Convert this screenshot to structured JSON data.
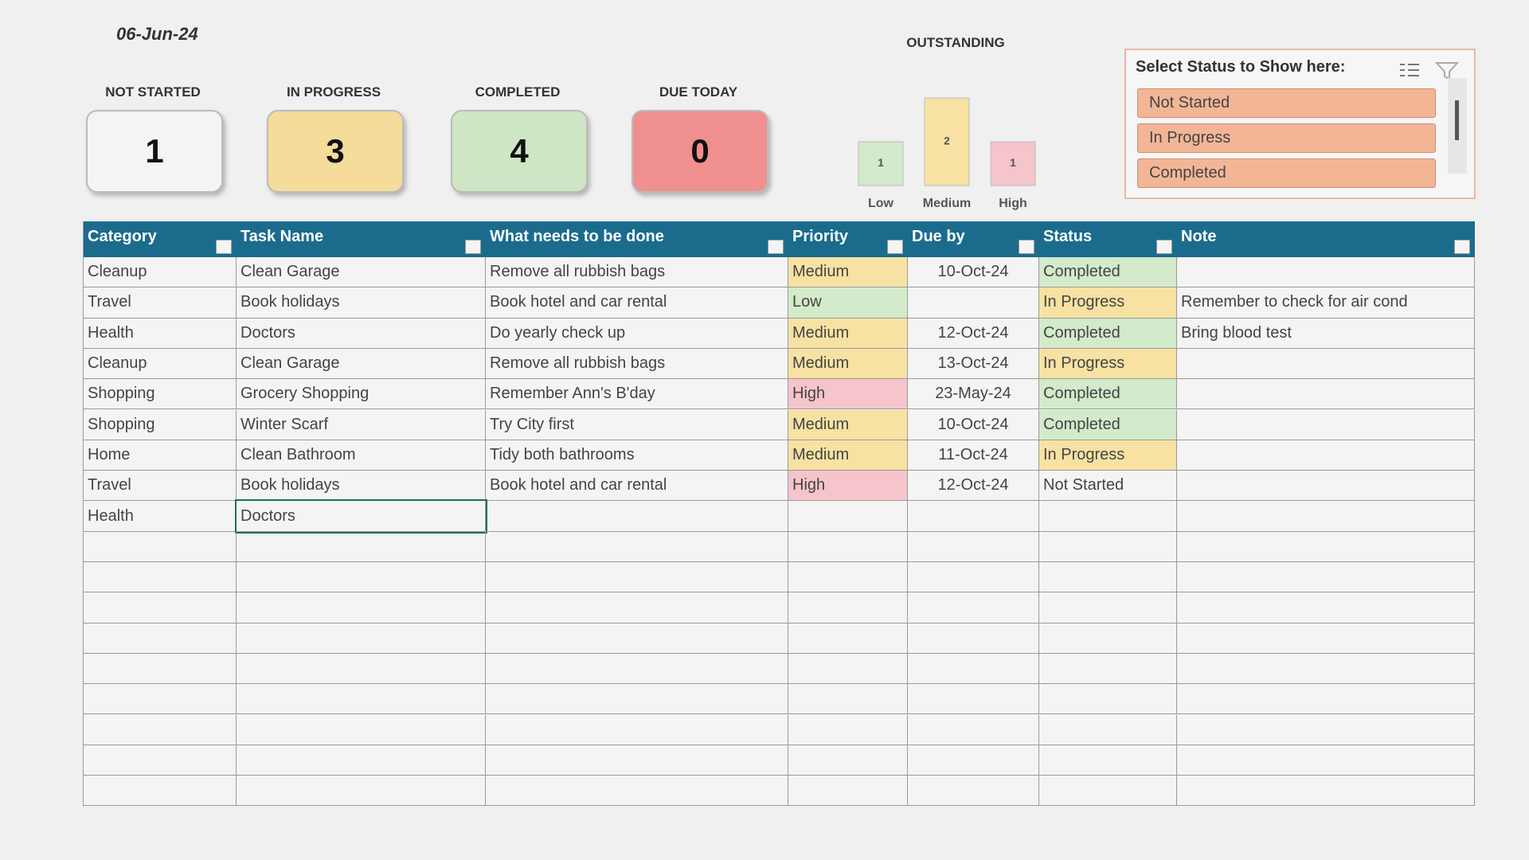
{
  "header": {
    "date": "06-Jun-24"
  },
  "kpis": [
    {
      "label": "NOT STARTED",
      "value": 1,
      "color": "#f4f4f4"
    },
    {
      "label": "IN PROGRESS",
      "value": 3,
      "color": "#f5dc9a"
    },
    {
      "label": "COMPLETED",
      "value": 4,
      "color": "#cfe6c4"
    },
    {
      "label": "DUE TODAY",
      "value": 0,
      "color": "#ef8f8f"
    }
  ],
  "chart_data": {
    "type": "bar",
    "title": "OUTSTANDING",
    "categories": [
      "Low",
      "Medium",
      "High"
    ],
    "values": [
      1,
      2,
      1
    ],
    "colors": [
      "#d3eacb",
      "#f7e2a3",
      "#f6c4cb"
    ]
  },
  "slicer": {
    "title": "Select Status to Show here:",
    "items": [
      "Not Started",
      "In Progress",
      "Completed"
    ],
    "color": "#f2b697"
  },
  "table": {
    "header_color": "#1b6c8c",
    "columns": [
      "Category",
      "Task Name",
      "What needs to be done",
      "Priority",
      "Due by",
      "Status",
      "Note"
    ],
    "rows": [
      [
        "Cleanup",
        "Clean Garage",
        "Remove all rubbish bags",
        "Medium",
        "10-Oct-24",
        "Completed",
        null
      ],
      [
        "Travel",
        "Book holidays",
        "Book hotel and car rental",
        "Low",
        null,
        "In Progress",
        "Remember to check for air cond"
      ],
      [
        "Health",
        "Doctors",
        "Do yearly check up",
        "Medium",
        "12-Oct-24",
        "Completed",
        "Bring blood test"
      ],
      [
        "Cleanup",
        "Clean Garage",
        "Remove all rubbish bags",
        "Medium",
        "13-Oct-24",
        "In Progress",
        null
      ],
      [
        "Shopping",
        "Grocery Shopping",
        "Remember Ann's B'day",
        "High",
        "23-May-24",
        "Completed",
        null
      ],
      [
        "Shopping",
        "Winter Scarf",
        "Try City first",
        "Medium",
        "10-Oct-24",
        "Completed",
        null
      ],
      [
        "Home",
        "Clean Bathroom",
        "Tidy both bathrooms",
        "Medium",
        "11-Oct-24",
        "In Progress",
        null
      ],
      [
        "Travel",
        "Book holidays",
        "Book hotel and car rental",
        "High",
        "12-Oct-24",
        "Not Started",
        null
      ],
      [
        "Health",
        "Doctors",
        null,
        null,
        null,
        null,
        null
      ]
    ],
    "priority_fills": [
      "#f7e2a3",
      "#d3eacb",
      "#f7e2a3",
      "#f7e2a3",
      "#f6c4cb",
      "#f7e2a3",
      "#f7e2a3",
      "#f6c4cb",
      null
    ],
    "status_fills": [
      "#d3eacb",
      "#f7e2a3",
      "#d3eacb",
      "#f7e2a3",
      "#d3eacb",
      "#d3eacb",
      "#f7e2a3",
      null,
      null
    ]
  }
}
